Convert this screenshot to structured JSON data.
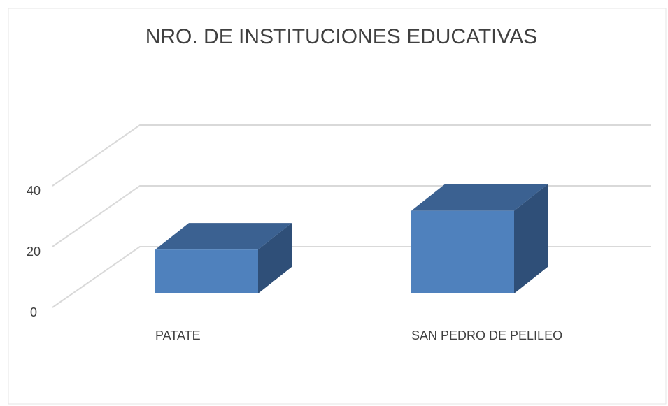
{
  "chart_data": {
    "type": "bar3d",
    "title": "NRO. DE INSTITUCIONES EDUCATIVAS",
    "categories": [
      "PATATE",
      "SAN PEDRO DE PELILEO"
    ],
    "values": [
      17,
      32
    ],
    "color": "#4f81bd",
    "ylim": [
      0,
      40
    ],
    "yticks": [
      0,
      20,
      40
    ],
    "grid": true
  }
}
